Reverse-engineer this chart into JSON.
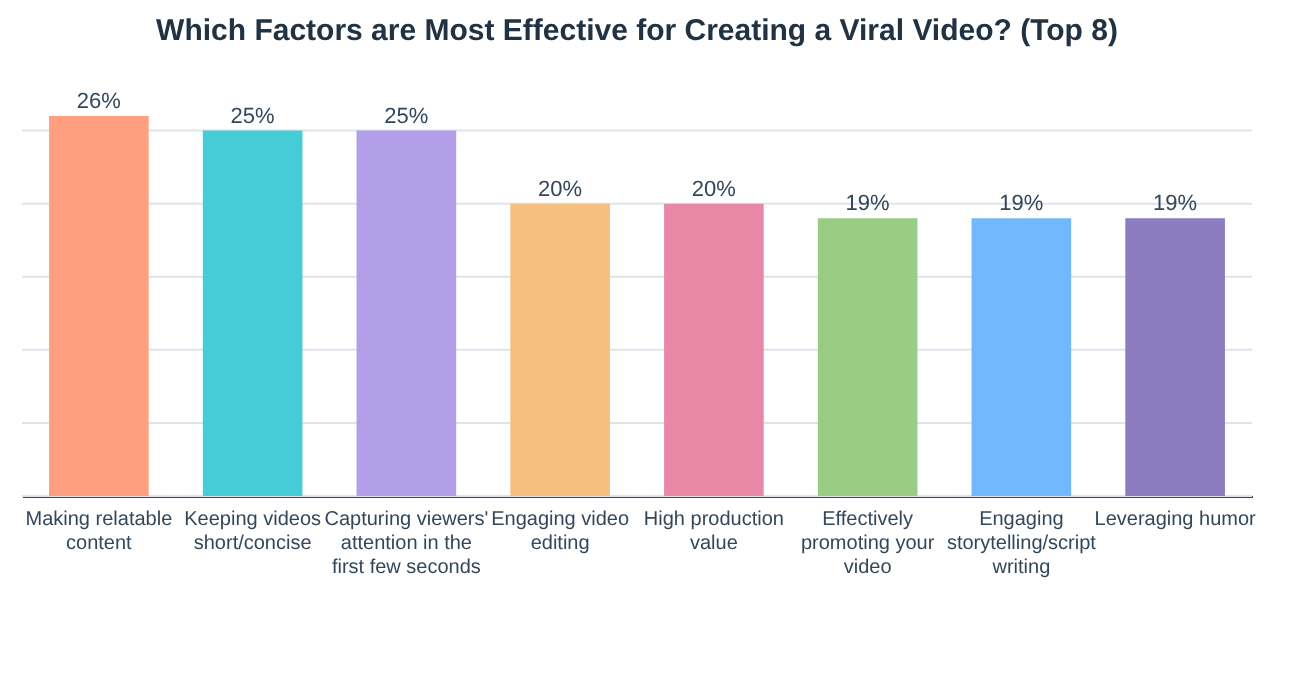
{
  "chart_data": {
    "type": "bar",
    "title": "Which Factors are Most Effective for Creating a Viral Video? (Top 8)",
    "categories": [
      "Making relatable content",
      "Keeping videos short/concise",
      "Capturing viewers' attention in the first few seconds",
      "Engaging video editing",
      "High production value",
      "Effectively promoting your video",
      "Engaging storytelling/script writing",
      "Leveraging humor"
    ],
    "values": [
      26,
      25,
      25,
      20,
      20,
      19,
      19,
      19
    ],
    "colors": [
      "#ff9f80",
      "#46ccd6",
      "#b39ee8",
      "#f5c07f",
      "#e887a6",
      "#9acd84",
      "#72b8fc",
      "#8b7bbf"
    ],
    "value_labels": [
      "26%",
      "25%",
      "25%",
      "20%",
      "20%",
      "19%",
      "19%",
      "19%"
    ],
    "ylim": [
      0,
      26
    ],
    "yticks": [
      {
        "value": 0,
        "label": null
      },
      {
        "value": 5,
        "label": null
      },
      {
        "value": 10,
        "label": null
      },
      {
        "value": 15,
        "label": null
      },
      {
        "value": 20,
        "label": null
      },
      {
        "value": 25,
        "label": null
      }
    ],
    "grid": "y",
    "tick_labels": "x"
  }
}
